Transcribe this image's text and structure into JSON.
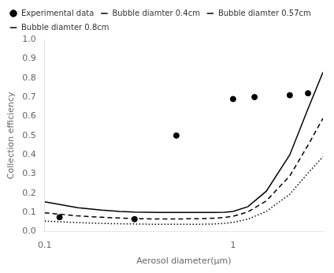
{
  "chart_data": {
    "type": "line",
    "xlabel": "Aerosol diameter(μm)",
    "ylabel": "Collection efficiency",
    "log": "x",
    "xlim": [
      0.1,
      3.0
    ],
    "ylim": [
      0.0,
      1.0
    ],
    "xticks": [
      0.1,
      1
    ],
    "yticks": [
      {
        "value": 0.0,
        "label": "0.0"
      },
      0.1,
      0.2,
      0.3,
      0.4,
      0.5,
      0.6,
      0.7,
      0.8,
      0.9,
      {
        "value": 1.0,
        "label": "1.0"
      }
    ],
    "grid": false,
    "legend": "upper left",
    "series": [
      {
        "name": "Experimental data",
        "type": "scatter",
        "marker": "circle",
        "color": "#000000",
        "x": [
          0.12,
          0.3,
          0.5,
          1.0,
          1.3,
          2.0,
          2.5
        ],
        "values": [
          0.075,
          0.065,
          0.5,
          0.69,
          0.7,
          0.71,
          0.72
        ]
      },
      {
        "name": "Bubble diamter 0.4cm",
        "type": "line",
        "line_style": "solid",
        "color": "#000000",
        "x": [
          0.1,
          0.15,
          0.2,
          0.25,
          0.3,
          0.4,
          0.5,
          0.6,
          0.7,
          0.8,
          0.9,
          1.0,
          1.2,
          1.5,
          2.0,
          2.5,
          3.0
        ],
        "values": [
          0.155,
          0.125,
          0.112,
          0.105,
          0.102,
          0.1,
          0.1,
          0.1,
          0.1,
          0.1,
          0.101,
          0.105,
          0.13,
          0.21,
          0.4,
          0.64,
          0.83
        ]
      },
      {
        "name": "Bubble diamter 0.57cm",
        "type": "line",
        "line_style": "dashed",
        "color": "#000000",
        "x": [
          0.1,
          0.15,
          0.2,
          0.25,
          0.3,
          0.4,
          0.5,
          0.6,
          0.7,
          0.8,
          0.9,
          1.0,
          1.2,
          1.5,
          2.0,
          2.5,
          3.0
        ],
        "values": [
          0.098,
          0.082,
          0.075,
          0.071,
          0.068,
          0.066,
          0.066,
          0.067,
          0.068,
          0.07,
          0.074,
          0.08,
          0.103,
          0.16,
          0.29,
          0.45,
          0.59
        ]
      },
      {
        "name": "Bubble diamter 0.8cm",
        "type": "line",
        "line_style": "dotted",
        "color": "#000000",
        "x": [
          0.1,
          0.15,
          0.2,
          0.25,
          0.3,
          0.4,
          0.5,
          0.6,
          0.7,
          0.8,
          0.9,
          1.0,
          1.2,
          1.5,
          2.0,
          2.5,
          3.0
        ],
        "values": [
          0.055,
          0.047,
          0.043,
          0.041,
          0.04,
          0.038,
          0.038,
          0.038,
          0.039,
          0.04,
          0.043,
          0.048,
          0.065,
          0.105,
          0.195,
          0.305,
          0.39
        ]
      }
    ]
  }
}
